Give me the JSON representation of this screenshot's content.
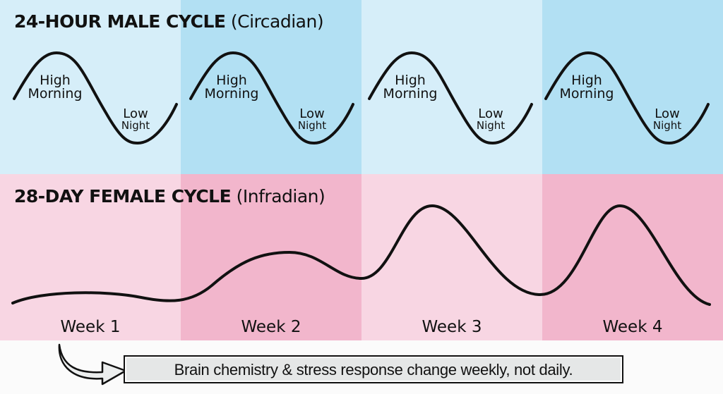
{
  "male": {
    "title_bold": "24-HOUR MALE CYCLE",
    "title_sub": "(Circadian)",
    "high": "High",
    "morning": "Morning",
    "low": "Low",
    "night": "Night"
  },
  "female": {
    "title_bold": "28-DAY FEMALE CYCLE",
    "title_sub": "(Infradian)"
  },
  "weeks": [
    "Week 1",
    "Week 2",
    "Week 3",
    "Week 4"
  ],
  "note": "Brain chemistry & stress response change weekly, not daily.",
  "colors": {
    "blue_light": "#d6eef9",
    "blue_dark": "#b2e0f3",
    "pink_light": "#f8d6e3",
    "pink_dark": "#f2b6cc"
  }
}
